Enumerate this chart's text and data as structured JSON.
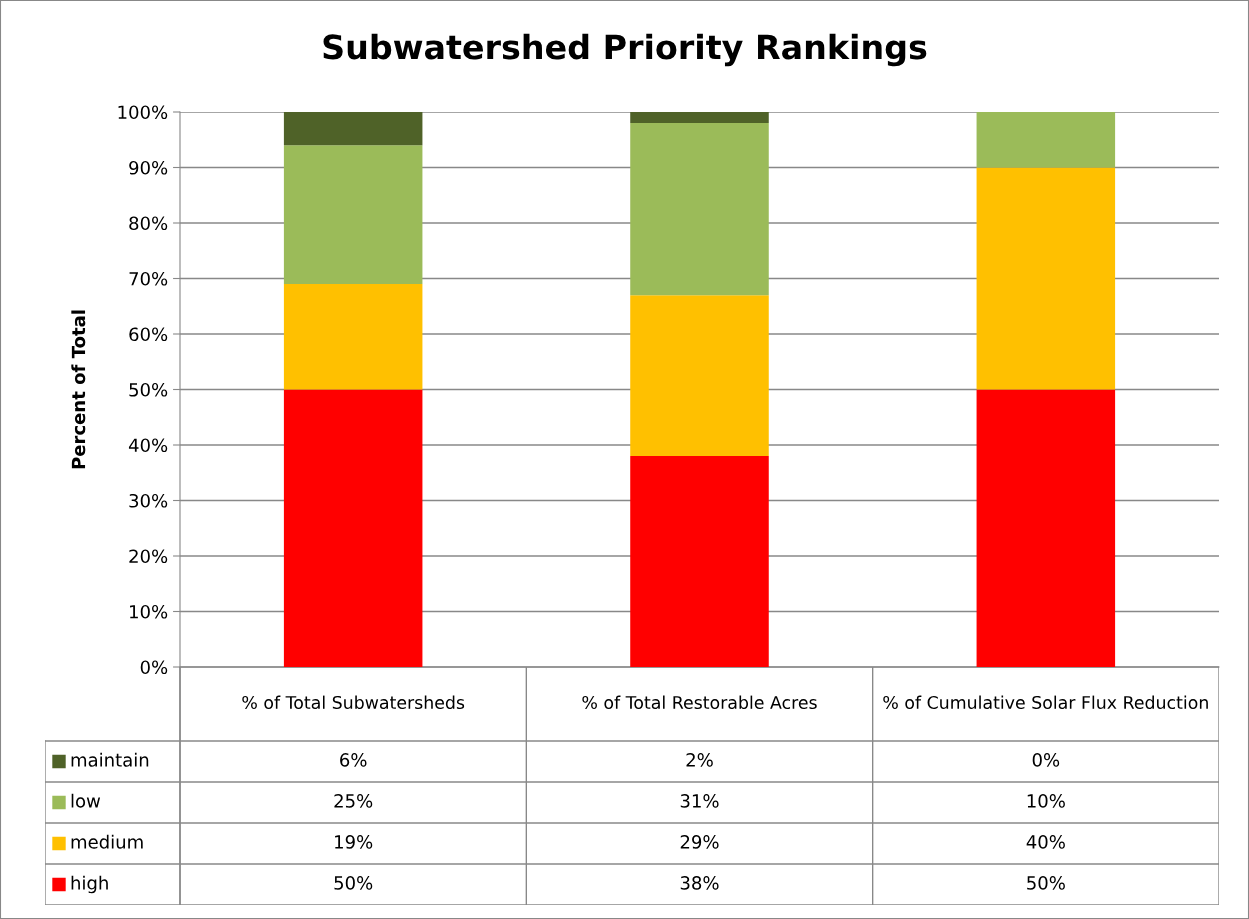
{
  "chart_data": {
    "type": "bar",
    "title": "Subwatershed Priority Rankings",
    "ylabel": "Percent of Total",
    "categories": [
      "% of Total Subwatersheds",
      "% of Total Restorable Acres",
      "% of Cumulative Solar Flux Reduction"
    ],
    "stacked": true,
    "series": [
      {
        "name": "high",
        "color": "#ff0000",
        "values": [
          50,
          38,
          50
        ],
        "value_labels": [
          "50%",
          "38%",
          "50%"
        ]
      },
      {
        "name": "medium",
        "color": "#ffc000",
        "values": [
          19,
          29,
          40
        ],
        "value_labels": [
          "19%",
          "29%",
          "40%"
        ]
      },
      {
        "name": "low",
        "color": "#9bbb59",
        "values": [
          25,
          31,
          10
        ],
        "value_labels": [
          "25%",
          "31%",
          "10%"
        ]
      },
      {
        "name": "maintain",
        "color": "#4f6228",
        "values": [
          6,
          2,
          0
        ],
        "value_labels": [
          "6%",
          "2%",
          "0%"
        ]
      }
    ],
    "ylim": [
      0,
      100
    ],
    "yticks": [
      {
        "value": 0,
        "label": "0%"
      },
      {
        "value": 10,
        "label": "10%"
      },
      {
        "value": 20,
        "label": "20%"
      },
      {
        "value": 30,
        "label": "30%"
      },
      {
        "value": 40,
        "label": "40%"
      },
      {
        "value": 50,
        "label": "50%"
      },
      {
        "value": 60,
        "label": "60%"
      },
      {
        "value": 70,
        "label": "70%"
      },
      {
        "value": 80,
        "label": "80%"
      },
      {
        "value": 90,
        "label": "90%"
      },
      {
        "value": 100,
        "label": "100%"
      }
    ],
    "grid": "y",
    "legend": "bottom"
  }
}
